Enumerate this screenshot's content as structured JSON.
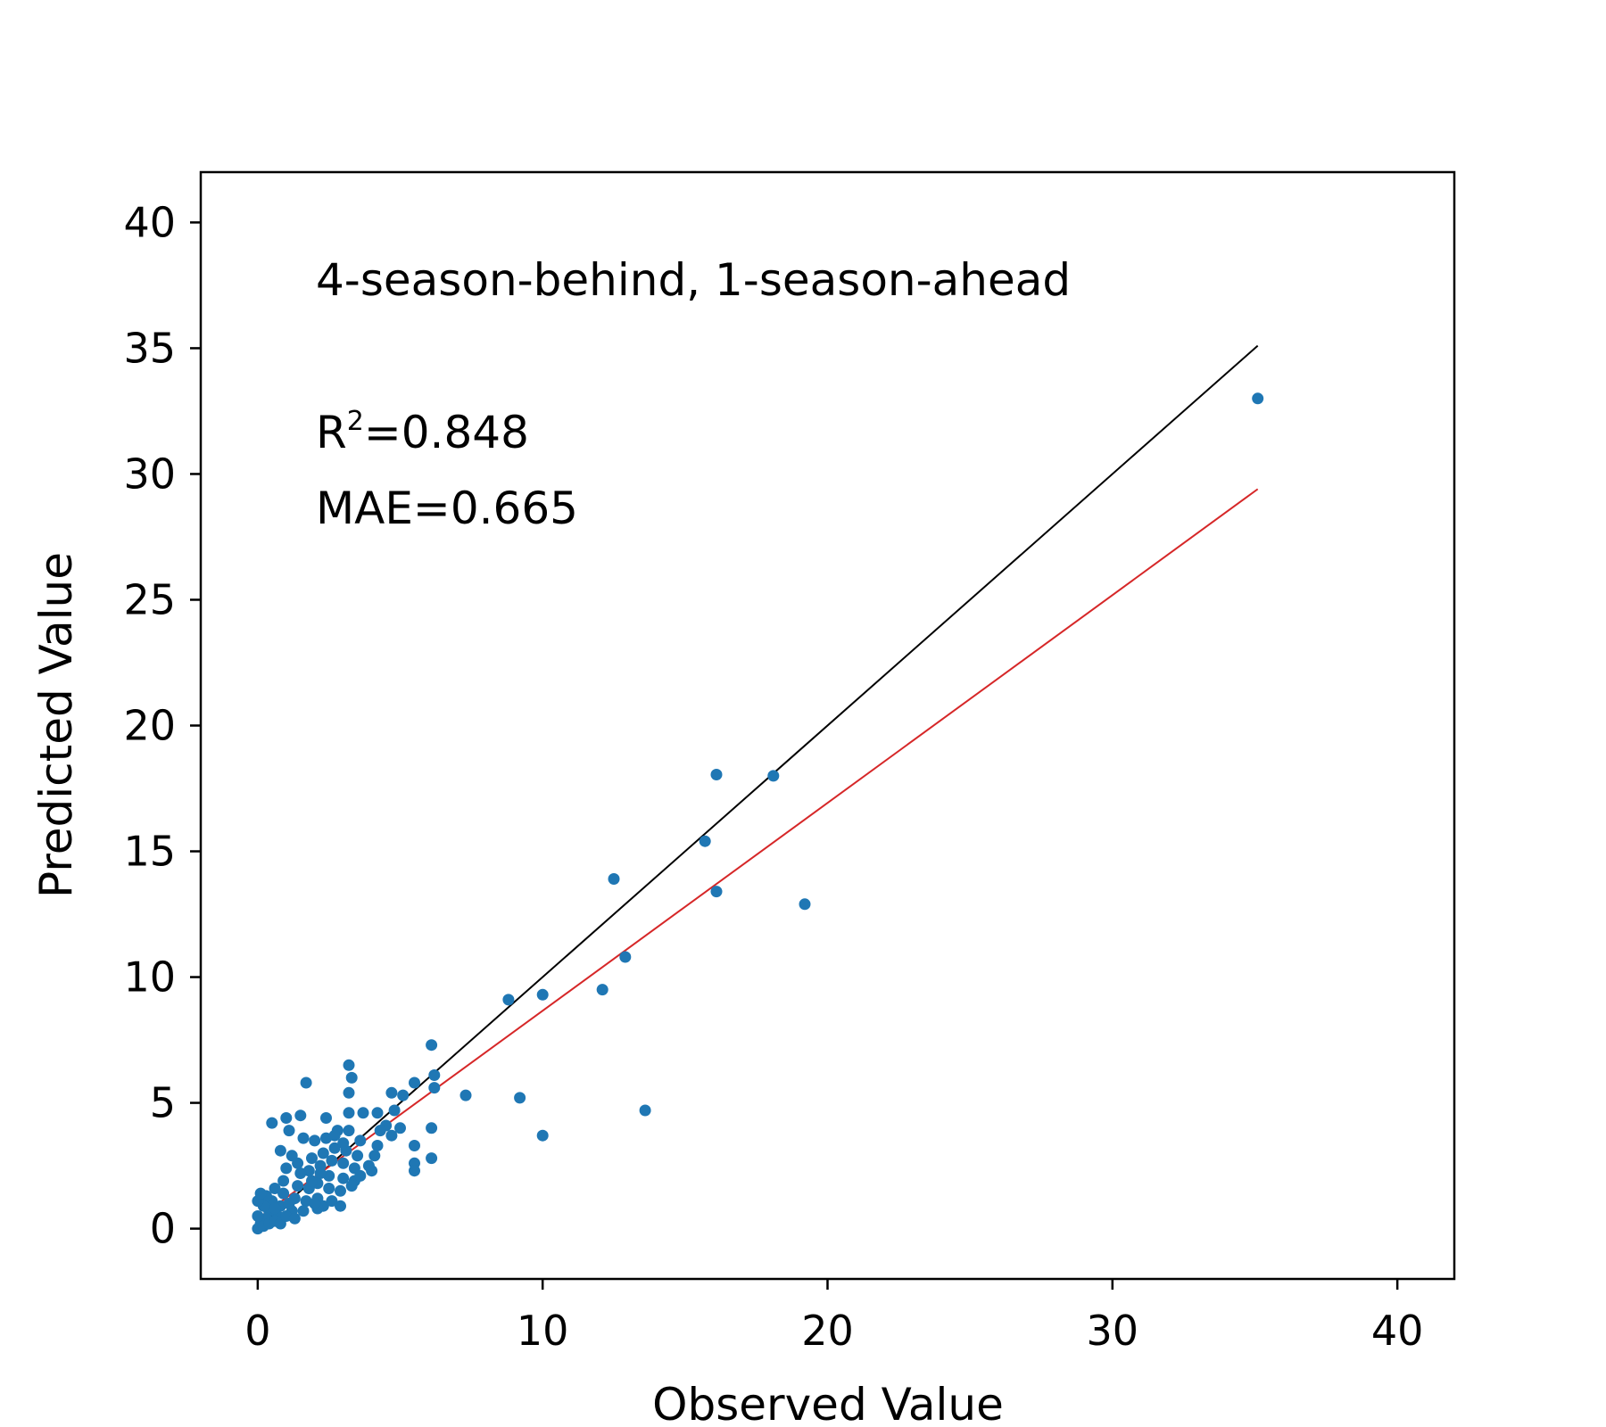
{
  "chart_data": {
    "type": "scatter",
    "xlabel": "Observed Value",
    "ylabel": "Predicted Value",
    "xlim": [
      -2,
      42
    ],
    "ylim": [
      -2,
      42
    ],
    "xticks": [
      0,
      10,
      20,
      30,
      40
    ],
    "yticks": [
      0,
      5,
      10,
      15,
      20,
      25,
      30,
      35,
      40
    ],
    "xtick_labels": [
      "0",
      "10",
      "20",
      "30",
      "40"
    ],
    "ytick_labels": [
      "0",
      "5",
      "10",
      "15",
      "20",
      "25",
      "30",
      "35",
      "40"
    ],
    "grid": false,
    "annotations": {
      "title_text": "4-season-behind, 1-season-ahead",
      "r2_base": "R",
      "r2_sup": "2",
      "r2_value": "=0.848",
      "mae_text": "MAE=0.665"
    },
    "colors": {
      "points": "#1f77b4",
      "identity_line": "#000000",
      "fit_line": "#d62728",
      "frame": "#000000"
    },
    "lines": [
      {
        "role": "identity",
        "x": [
          0,
          35.1
        ],
        "y": [
          0,
          35.1
        ]
      },
      {
        "role": "fit",
        "x": [
          0,
          35.1
        ],
        "y": [
          0.4,
          29.4
        ]
      }
    ],
    "series": [
      {
        "points": [
          [
            35.1,
            33.0
          ],
          [
            18.1,
            18.0
          ],
          [
            16.1,
            18.05
          ],
          [
            15.7,
            15.4
          ],
          [
            16.1,
            13.4
          ],
          [
            19.2,
            12.9
          ],
          [
            12.5,
            13.9
          ],
          [
            12.9,
            10.8
          ],
          [
            12.1,
            9.5
          ],
          [
            10.0,
            9.3
          ],
          [
            8.8,
            9.1
          ],
          [
            9.2,
            5.2
          ],
          [
            10.0,
            3.7
          ],
          [
            13.6,
            4.7
          ],
          [
            7.3,
            5.3
          ],
          [
            6.1,
            7.3
          ],
          [
            6.2,
            6.1
          ],
          [
            6.2,
            5.6
          ],
          [
            6.1,
            4.0
          ],
          [
            6.1,
            2.8
          ],
          [
            5.5,
            5.8
          ],
          [
            5.5,
            3.3
          ],
          [
            5.5,
            2.6
          ],
          [
            5.5,
            2.3
          ],
          [
            5.1,
            5.3
          ],
          [
            5.0,
            4.0
          ],
          [
            4.8,
            4.7
          ],
          [
            4.7,
            5.4
          ],
          [
            4.7,
            3.7
          ],
          [
            4.5,
            4.1
          ],
          [
            4.3,
            3.9
          ],
          [
            4.2,
            4.6
          ],
          [
            4.2,
            3.3
          ],
          [
            4.1,
            2.9
          ],
          [
            4.0,
            2.3
          ],
          [
            3.7,
            4.6
          ],
          [
            3.6,
            3.5
          ],
          [
            3.5,
            2.9
          ],
          [
            3.4,
            2.4
          ],
          [
            3.4,
            1.9
          ],
          [
            3.3,
            6.0
          ],
          [
            3.2,
            6.5
          ],
          [
            3.2,
            5.4
          ],
          [
            3.2,
            4.6
          ],
          [
            3.2,
            3.9
          ],
          [
            3.1,
            3.1
          ],
          [
            3.0,
            2.6
          ],
          [
            3.0,
            2.0
          ],
          [
            2.9,
            1.5
          ],
          [
            2.9,
            0.9
          ],
          [
            2.8,
            3.9
          ],
          [
            2.7,
            3.2
          ],
          [
            2.6,
            2.7
          ],
          [
            2.5,
            2.1
          ],
          [
            2.5,
            1.6
          ],
          [
            2.4,
            3.6
          ],
          [
            2.3,
            3.0
          ],
          [
            2.2,
            2.5
          ],
          [
            2.1,
            1.8
          ],
          [
            2.1,
            1.2
          ],
          [
            2.4,
            4.4
          ],
          [
            2.3,
            0.9
          ],
          [
            2.1,
            0.8
          ],
          [
            2.0,
            3.5
          ],
          [
            1.9,
            2.8
          ],
          [
            1.8,
            2.3
          ],
          [
            1.8,
            1.6
          ],
          [
            1.7,
            1.1
          ],
          [
            1.7,
            5.8
          ],
          [
            1.6,
            3.6
          ],
          [
            1.5,
            4.5
          ],
          [
            1.5,
            2.2
          ],
          [
            1.4,
            1.7
          ],
          [
            1.3,
            1.2
          ],
          [
            1.2,
            0.7
          ],
          [
            1.2,
            2.9
          ],
          [
            1.1,
            3.9
          ],
          [
            1.0,
            4.4
          ],
          [
            1.0,
            2.4
          ],
          [
            0.9,
            1.9
          ],
          [
            0.9,
            1.4
          ],
          [
            0.8,
            3.1
          ],
          [
            0.8,
            0.9
          ],
          [
            0.7,
            0.5
          ],
          [
            0.6,
            1.6
          ],
          [
            0.5,
            4.2
          ],
          [
            0.5,
            1.1
          ],
          [
            0.4,
            0.7
          ],
          [
            0.3,
            1.3
          ],
          [
            0.3,
            0.4
          ],
          [
            0.2,
            0.9
          ],
          [
            0.1,
            0.2
          ],
          [
            0.0,
            0.0
          ],
          [
            0.0,
            0.5
          ],
          [
            0.0,
            1.1
          ],
          [
            0.1,
            1.4
          ],
          [
            0.2,
            0.1
          ],
          [
            0.4,
            0.2
          ],
          [
            0.6,
            0.3
          ],
          [
            0.8,
            0.2
          ],
          [
            1.0,
            0.5
          ],
          [
            1.3,
            0.4
          ],
          [
            1.6,
            0.7
          ],
          [
            2.0,
            1.0
          ],
          [
            2.6,
            1.1
          ],
          [
            3.3,
            1.7
          ],
          [
            3.6,
            2.1
          ],
          [
            3.9,
            2.5
          ],
          [
            1.4,
            2.6
          ],
          [
            2.7,
            3.7
          ],
          [
            3.0,
            3.4
          ],
          [
            2.2,
            2.2
          ],
          [
            1.9,
            1.9
          ],
          [
            1.1,
            1.0
          ],
          [
            0.6,
            0.8
          ]
        ]
      }
    ]
  }
}
